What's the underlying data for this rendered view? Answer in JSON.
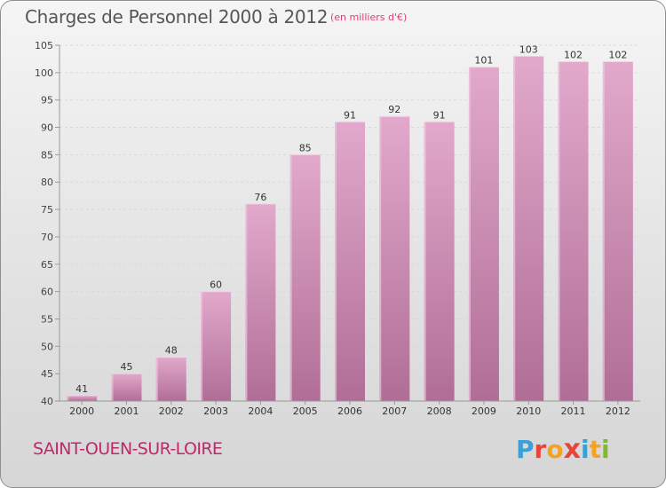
{
  "header": {
    "title": "Charges de Personnel 2000 à 2012",
    "subtitle": "(en milliers d'€)"
  },
  "footer": {
    "commune": "SAINT-OUEN-SUR-LOIRE",
    "logo": "Proxiti"
  },
  "colors": {
    "bar_top": "#e2a9cc",
    "bar_bottom": "#b06e96",
    "commune_text": "#c0286a",
    "subtitle_text": "#e0406e",
    "logo_letters": [
      "#3aa0d8",
      "#e8443a",
      "#f2a321",
      "#e8443a",
      "#3aa0d8",
      "#f2a321",
      "#7dbb2a"
    ]
  },
  "chart_data": {
    "type": "bar",
    "title": "Charges de Personnel 2000 à 2012",
    "subtitle": "(en milliers d'€)",
    "categories": [
      "2000",
      "2001",
      "2002",
      "2003",
      "2004",
      "2005",
      "2006",
      "2007",
      "2008",
      "2009",
      "2010",
      "2011",
      "2012"
    ],
    "values": [
      41,
      45,
      48,
      60,
      76,
      85,
      91,
      92,
      91,
      101,
      103,
      102,
      102
    ],
    "ylim": [
      40,
      105
    ],
    "yticks": [
      40,
      45,
      50,
      55,
      60,
      65,
      70,
      75,
      80,
      85,
      90,
      95,
      100,
      105
    ],
    "grid": true,
    "xlabel": "",
    "ylabel": ""
  }
}
